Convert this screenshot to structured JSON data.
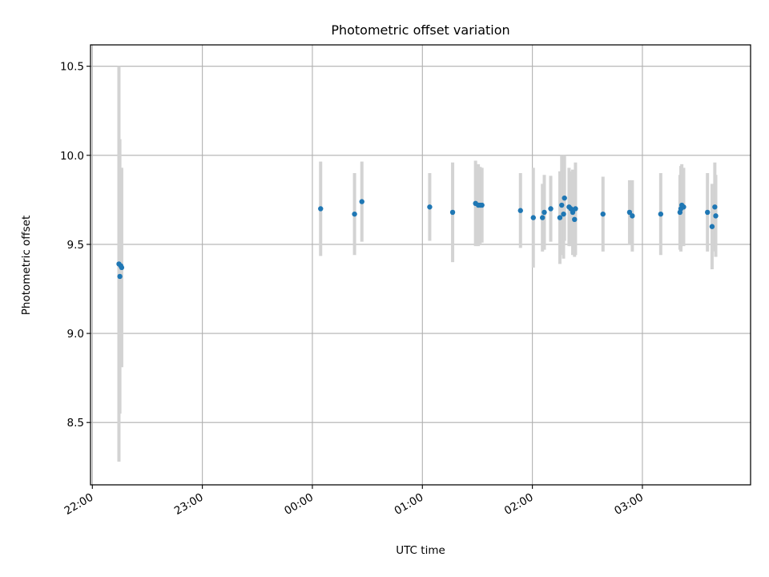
{
  "chart_data": {
    "type": "scatter",
    "title": "Photometric offset variation",
    "xlabel": "UTC time",
    "ylabel": "Photometric offset",
    "x_is_time": true,
    "xlim": [
      "21:59",
      "03:59"
    ],
    "ylim": [
      8.15,
      10.62
    ],
    "x_ticks": [
      {
        "t": "22:00",
        "label": "22:00"
      },
      {
        "t": "23:00",
        "label": "23:00"
      },
      {
        "t": "00:00",
        "label": "00:00"
      },
      {
        "t": "01:00",
        "label": "01:00"
      },
      {
        "t": "02:00",
        "label": "02:00"
      },
      {
        "t": "03:00",
        "label": "03:00"
      }
    ],
    "y_ticks": [
      {
        "v": 8.5,
        "label": "8.5"
      },
      {
        "v": 9.0,
        "label": "9.0"
      },
      {
        "v": 9.5,
        "label": "9.5"
      },
      {
        "v": 10.0,
        "label": "10.0"
      },
      {
        "v": 10.5,
        "label": "10.5"
      }
    ],
    "grid": true,
    "colors": {
      "points": "#1f77b4",
      "errorbars": "#d3d3d3",
      "grid": "#b0b0b0"
    },
    "series": [
      {
        "points": [
          {
            "t": "22:14.5",
            "y": 9.39,
            "err": 1.11
          },
          {
            "t": "22:15.0",
            "y": 9.32,
            "err": 0.77
          },
          {
            "t": "22:15.5",
            "y": 9.38,
            "err": 0.55
          },
          {
            "t": "22:16.0",
            "y": 9.37,
            "err": 0.56
          },
          {
            "t": "00:04.5",
            "y": 9.7,
            "err": 0.265
          },
          {
            "t": "00:23.0",
            "y": 9.67,
            "err": 0.23
          },
          {
            "t": "00:27.0",
            "y": 9.74,
            "err": 0.225
          },
          {
            "t": "01:04.0",
            "y": 9.71,
            "err": 0.19
          },
          {
            "t": "01:16.5",
            "y": 9.68,
            "err": 0.28
          },
          {
            "t": "01:29.0",
            "y": 9.73,
            "err": 0.24
          },
          {
            "t": "01:30.5",
            "y": 9.72,
            "err": 0.23
          },
          {
            "t": "01:31.5",
            "y": 9.72,
            "err": 0.215
          },
          {
            "t": "01:32.5",
            "y": 9.72,
            "err": 0.21
          },
          {
            "t": "01:53.5",
            "y": 9.69,
            "err": 0.21
          },
          {
            "t": "02:00.5",
            "y": 9.65,
            "err": 0.28
          },
          {
            "t": "02:05.5",
            "y": 9.65,
            "err": 0.19
          },
          {
            "t": "02:06.5",
            "y": 9.68,
            "err": 0.21
          },
          {
            "t": "02:10.0",
            "y": 9.7,
            "err": 0.185
          },
          {
            "t": "02:15.0",
            "y": 9.65,
            "err": 0.26
          },
          {
            "t": "02:16.0",
            "y": 9.72,
            "err": 0.28
          },
          {
            "t": "02:17.0",
            "y": 9.67,
            "err": 0.25
          },
          {
            "t": "02:17.5",
            "y": 9.76,
            "err": 0.24
          },
          {
            "t": "02:20.0",
            "y": 9.71,
            "err": 0.22
          },
          {
            "t": "02:21.0",
            "y": 9.7,
            "err": 0.21
          },
          {
            "t": "02:22.0",
            "y": 9.68,
            "err": 0.24
          },
          {
            "t": "02:23.0",
            "y": 9.64,
            "err": 0.21
          },
          {
            "t": "02:23.5",
            "y": 9.7,
            "err": 0.26
          },
          {
            "t": "02:38.5",
            "y": 9.67,
            "err": 0.21
          },
          {
            "t": "02:53.0",
            "y": 9.68,
            "err": 0.18
          },
          {
            "t": "02:54.5",
            "y": 9.66,
            "err": 0.2
          },
          {
            "t": "03:10.0",
            "y": 9.67,
            "err": 0.23
          },
          {
            "t": "03:20.5",
            "y": 9.68,
            "err": 0.21
          },
          {
            "t": "03:21.0",
            "y": 9.7,
            "err": 0.24
          },
          {
            "t": "03:21.5",
            "y": 9.72,
            "err": 0.23
          },
          {
            "t": "03:22.5",
            "y": 9.71,
            "err": 0.22
          },
          {
            "t": "03:35.5",
            "y": 9.68,
            "err": 0.22
          },
          {
            "t": "03:38.0",
            "y": 9.6,
            "err": 0.24
          },
          {
            "t": "03:39.5",
            "y": 9.71,
            "err": 0.25
          },
          {
            "t": "03:40.0",
            "y": 9.66,
            "err": 0.23
          }
        ]
      }
    ]
  }
}
